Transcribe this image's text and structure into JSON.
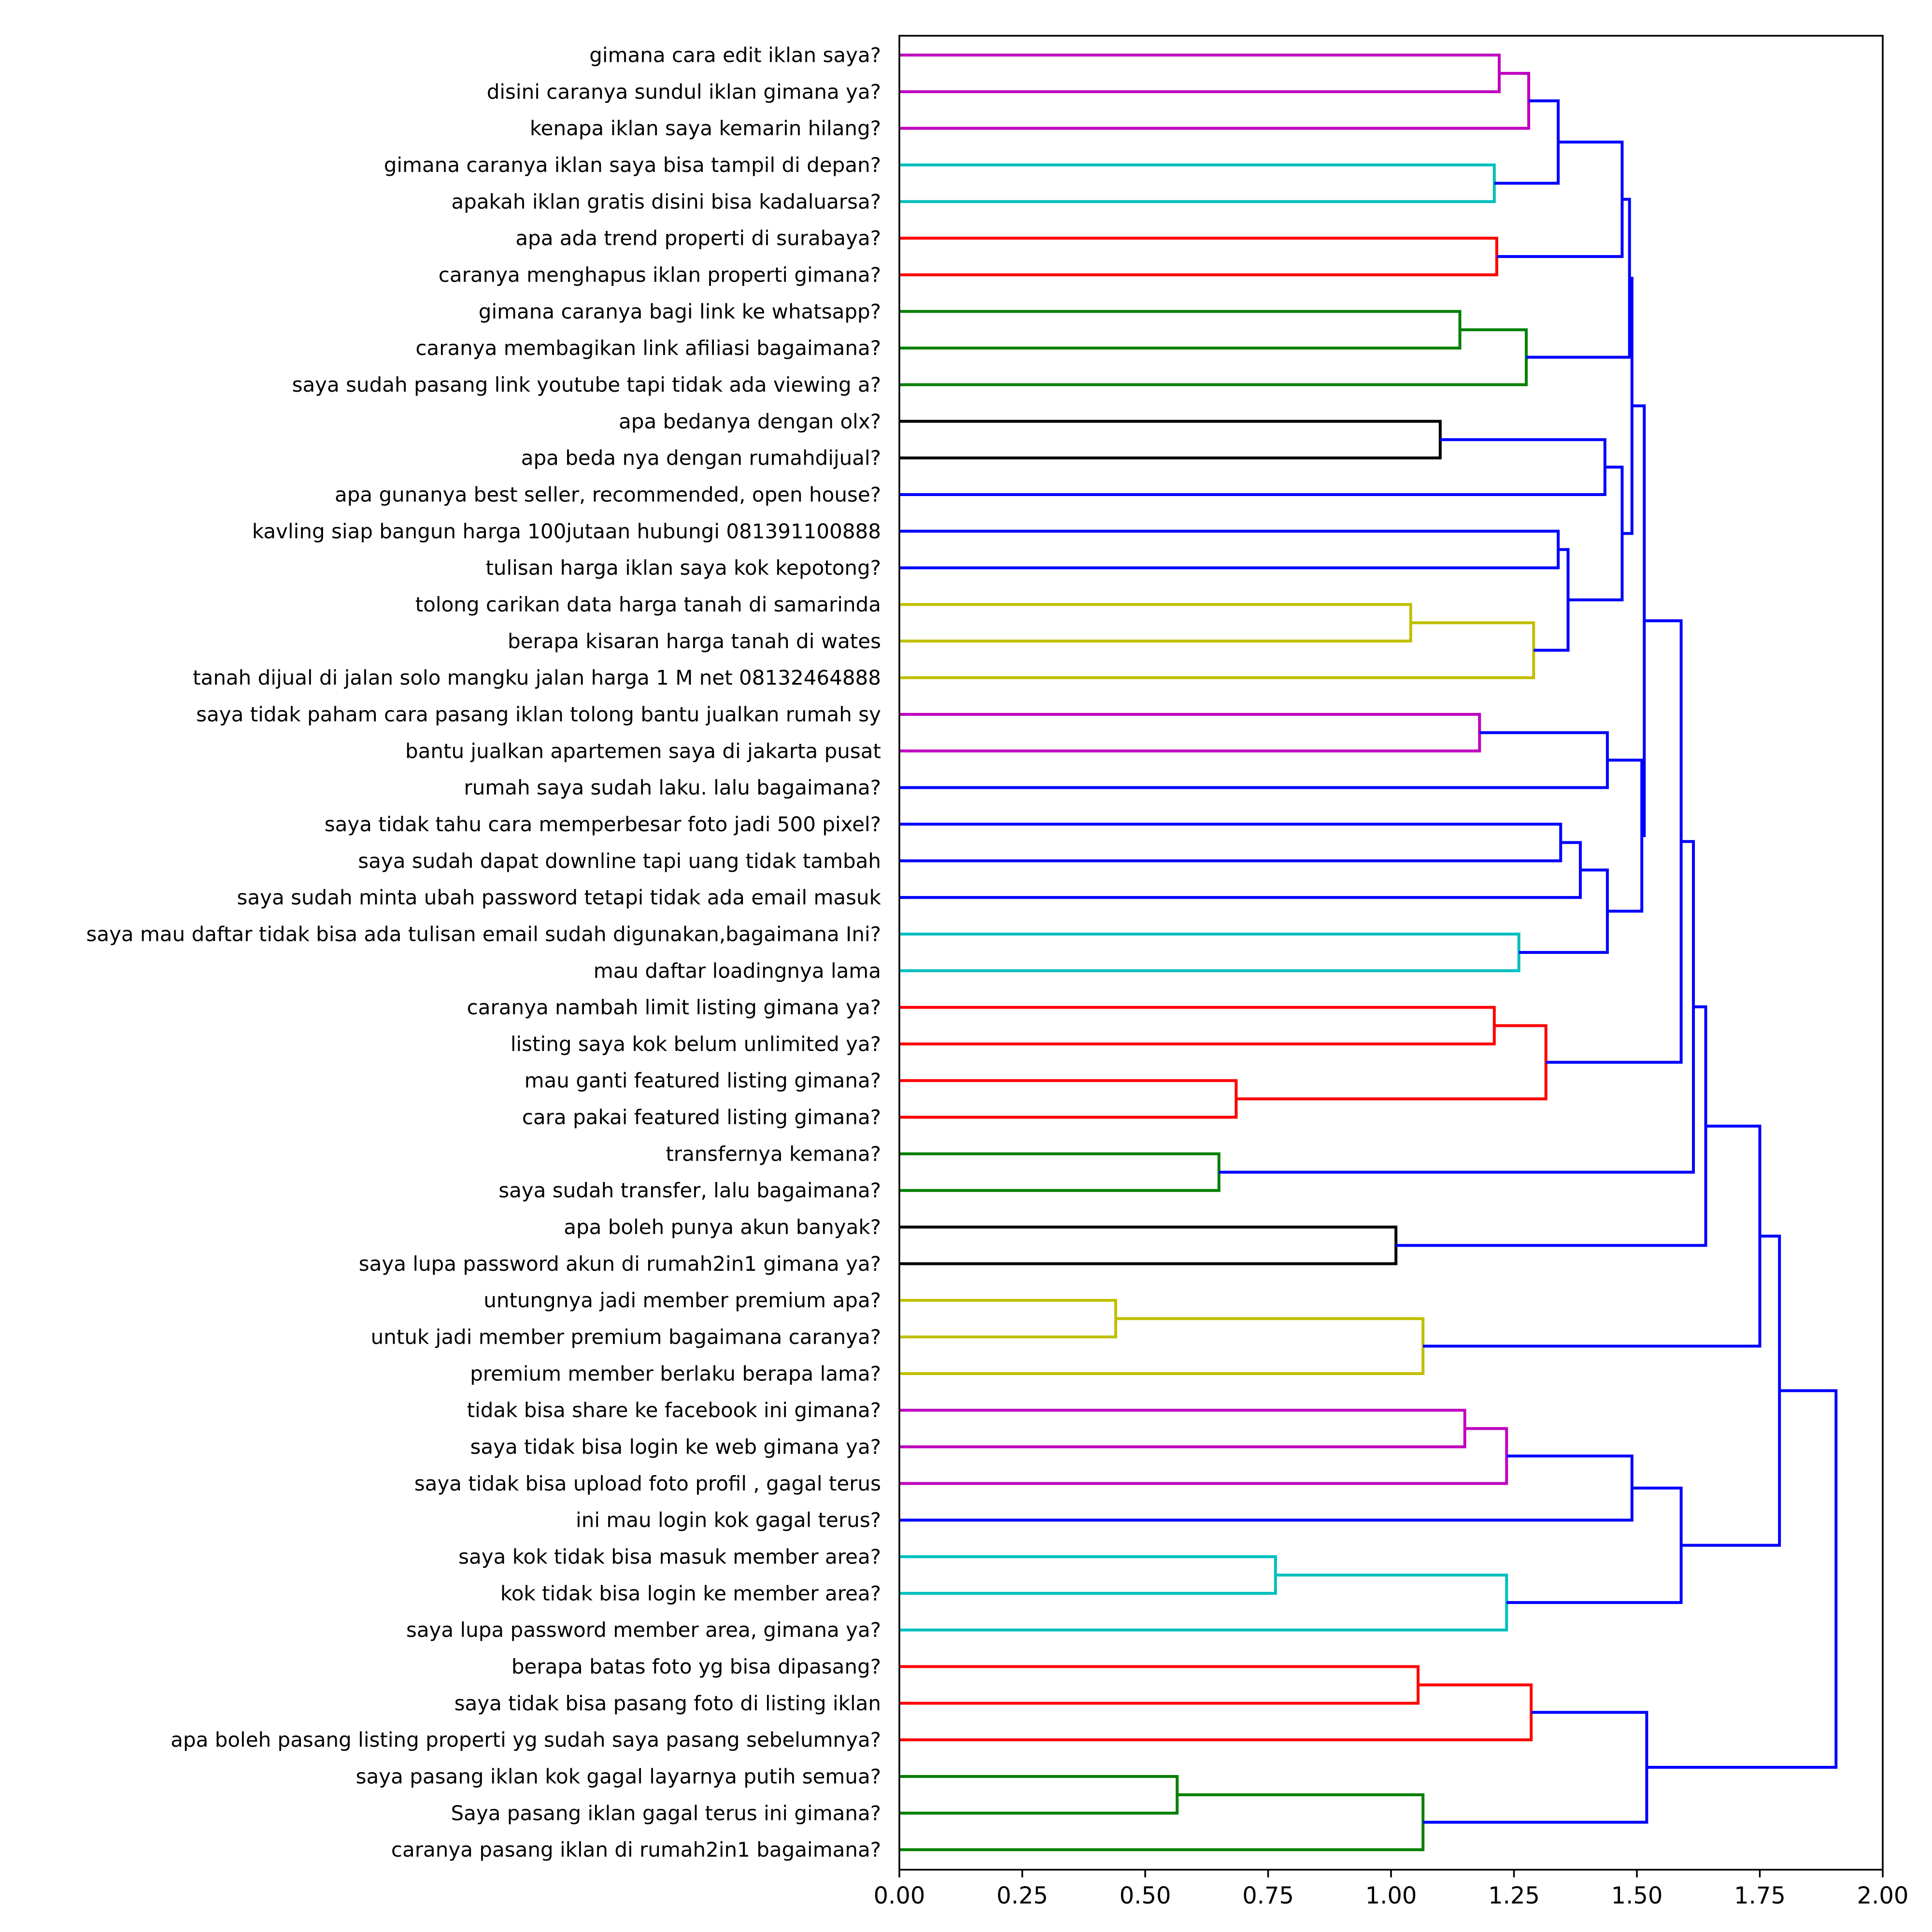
{
  "chart_data": {
    "type": "dendrogram",
    "orientation": "horizontal",
    "xlim": [
      0,
      2.0
    ],
    "xticks": [
      "0.00",
      "0.25",
      "0.50",
      "0.75",
      "1.00",
      "1.25",
      "1.50",
      "1.75",
      "2.00"
    ],
    "xtick_values": [
      0,
      0.25,
      0.5,
      0.75,
      1.0,
      1.25,
      1.5,
      1.75,
      2.0
    ],
    "colors": {
      "m": "#bf00bf",
      "c": "#00bfbf",
      "r": "#ff0000",
      "g": "#008000",
      "k": "#000000",
      "y": "#bfbf00",
      "b": "#0000ff"
    },
    "labels": [
      "gimana cara edit iklan saya?",
      "disini caranya sundul iklan gimana ya?",
      "kenapa iklan saya kemarin hilang?",
      "gimana caranya iklan saya bisa tampil di depan?",
      "apakah iklan gratis disini bisa kadaluarsa?",
      "apa ada trend properti di surabaya?",
      "caranya menghapus iklan properti gimana?",
      "gimana caranya bagi link ke whatsapp?",
      "caranya membagikan link afiliasi bagaimana?",
      "saya sudah pasang link youtube tapi tidak ada viewing a?",
      "apa bedanya dengan olx?",
      "apa beda nya dengan rumahdijual?",
      "apa gunanya best seller, recommended, open house?",
      "kavling siap bangun harga 100jutaan hubungi 081391100888",
      "tulisan harga iklan saya kok kepotong?",
      "tolong carikan data harga tanah di samarinda",
      "berapa kisaran harga tanah di wates",
      "tanah dijual di jalan solo mangku jalan harga 1 M net 08132464888",
      "saya tidak paham cara pasang iklan tolong bantu jualkan rumah sy",
      "bantu jualkan apartemen saya di jakarta pusat",
      "rumah saya sudah laku. lalu bagaimana?",
      "saya tidak tahu cara memperbesar foto jadi 500 pixel?",
      "saya sudah dapat downline tapi uang tidak tambah",
      "saya sudah minta ubah password tetapi tidak ada email masuk",
      "saya mau daftar tidak bisa ada tulisan email sudah digunakan,bagaimana Ini?",
      "mau daftar loadingnya lama",
      "caranya nambah limit listing gimana ya?",
      "listing saya kok belum unlimited ya?",
      "mau ganti featured listing gimana?",
      "cara pakai featured listing gimana?",
      "transfernya kemana?",
      "saya sudah transfer, lalu bagaimana?",
      "apa boleh punya akun banyak?",
      "saya lupa password akun di rumah2in1 gimana ya?",
      "untungnya jadi member premium apa?",
      "untuk jadi member premium bagaimana caranya?",
      "premium member berlaku berapa lama?",
      "tidak bisa share ke facebook ini gimana?",
      "saya tidak bisa login ke web gimana ya?",
      "saya tidak bisa upload foto profil , gagal terus",
      "ini mau login kok gagal terus?",
      "saya kok tidak bisa masuk member area?",
      "kok  tidak bisa login ke member area?",
      "saya lupa password member area, gimana ya?",
      "berapa batas foto yg bisa dipasang?",
      "saya tidak bisa pasang foto di listing iklan",
      "apa boleh pasang listing properti yg sudah saya pasang sebelumnya?",
      "saya pasang iklan kok gagal layarnya putih semua?",
      "Saya pasang iklan gagal terus ini gimana?",
      "caranya pasang iklan di rumah2in1 bagaimana?"
    ],
    "merges": [
      [
        0,
        1,
        1.22,
        "m"
      ],
      [
        50,
        2,
        1.28,
        "m"
      ],
      [
        3,
        4,
        1.21,
        "c"
      ],
      [
        51,
        52,
        1.34,
        "b"
      ],
      [
        5,
        6,
        1.215,
        "r"
      ],
      [
        53,
        54,
        1.47,
        "b"
      ],
      [
        7,
        8,
        1.14,
        "g"
      ],
      [
        56,
        9,
        1.275,
        "g"
      ],
      [
        55,
        57,
        1.485,
        "b"
      ],
      [
        10,
        11,
        1.1,
        "k"
      ],
      [
        59,
        12,
        1.435,
        "b"
      ],
      [
        13,
        14,
        1.34,
        "b"
      ],
      [
        15,
        16,
        1.04,
        "y"
      ],
      [
        62,
        17,
        1.29,
        "y"
      ],
      [
        61,
        63,
        1.36,
        "b"
      ],
      [
        60,
        64,
        1.47,
        "b"
      ],
      [
        58,
        65,
        1.49,
        "b"
      ],
      [
        18,
        19,
        1.18,
        "m"
      ],
      [
        67,
        20,
        1.44,
        "b"
      ],
      [
        21,
        22,
        1.345,
        "b"
      ],
      [
        69,
        23,
        1.385,
        "b"
      ],
      [
        24,
        25,
        1.26,
        "c"
      ],
      [
        70,
        71,
        1.44,
        "b"
      ],
      [
        68,
        72,
        1.51,
        "b"
      ],
      [
        66,
        73,
        1.515,
        "b"
      ],
      [
        26,
        27,
        1.21,
        "r"
      ],
      [
        28,
        29,
        0.685,
        "r"
      ],
      [
        75,
        76,
        1.315,
        "r"
      ],
      [
        74,
        77,
        1.59,
        "b"
      ],
      [
        30,
        31,
        0.65,
        "g"
      ],
      [
        78,
        79,
        1.615,
        "b"
      ],
      [
        32,
        33,
        1.01,
        "k"
      ],
      [
        80,
        81,
        1.64,
        "b"
      ],
      [
        34,
        35,
        0.44,
        "y"
      ],
      [
        83,
        36,
        1.065,
        "y"
      ],
      [
        82,
        84,
        1.75,
        "b"
      ],
      [
        37,
        38,
        1.15,
        "m"
      ],
      [
        86,
        39,
        1.235,
        "m"
      ],
      [
        87,
        40,
        1.49,
        "b"
      ],
      [
        41,
        42,
        0.765,
        "c"
      ],
      [
        89,
        43,
        1.235,
        "c"
      ],
      [
        88,
        90,
        1.59,
        "b"
      ],
      [
        85,
        91,
        1.79,
        "b"
      ],
      [
        44,
        45,
        1.055,
        "r"
      ],
      [
        93,
        46,
        1.285,
        "r"
      ],
      [
        47,
        48,
        0.565,
        "g"
      ],
      [
        95,
        49,
        1.065,
        "g"
      ],
      [
        94,
        96,
        1.52,
        "b"
      ],
      [
        92,
        97,
        1.905,
        "b"
      ]
    ]
  }
}
